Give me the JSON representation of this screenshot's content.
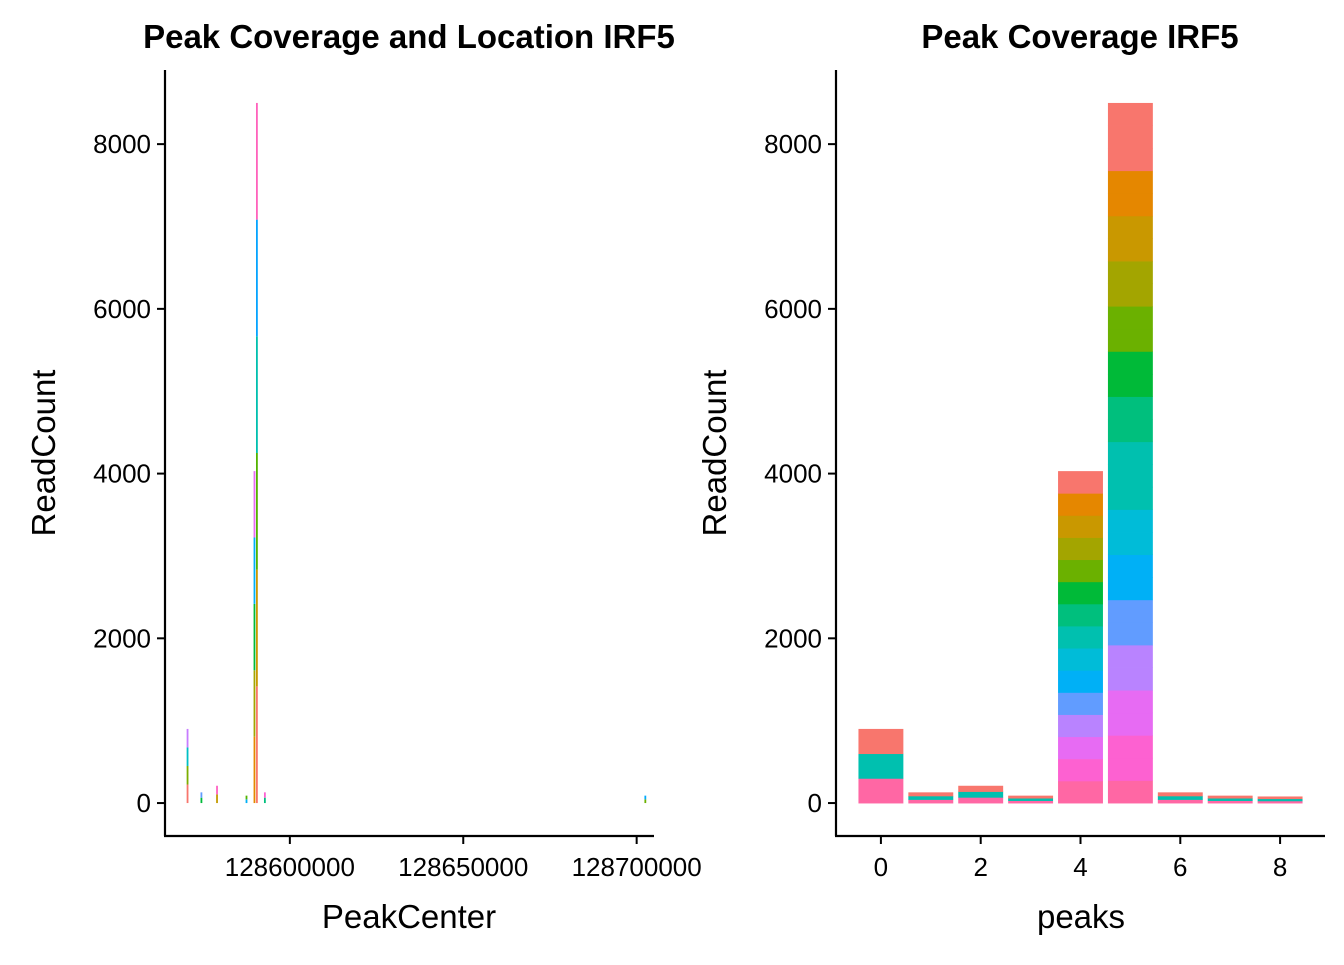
{
  "chart_data": [
    {
      "type": "bar",
      "title": "Peak Coverage and Location IRF5",
      "xlabel": "PeakCenter",
      "ylabel": "ReadCount",
      "xlim": [
        128564000,
        128705000
      ],
      "ylim": [
        -400,
        8900
      ],
      "xticks": [
        128600000,
        128650000,
        128700000
      ],
      "xtick_labels": [
        "128600000",
        "128650000",
        "128700000"
      ],
      "yticks": [
        0,
        2000,
        4000,
        6000,
        8000
      ],
      "ytick_labels": [
        "0",
        "2000",
        "4000",
        "6000",
        "8000"
      ],
      "grid": false,
      "legend": "none",
      "peaks": [
        {
          "x": 128570500,
          "value": 900,
          "colors": [
            "#F8766D",
            "#7CAE00",
            "#00BFC4",
            "#C77CFF"
          ]
        },
        {
          "x": 128574500,
          "value": 130,
          "colors": [
            "#00BA38",
            "#619CFF"
          ]
        },
        {
          "x": 128579000,
          "value": 210,
          "colors": [
            "#C49A00",
            "#FF61C3"
          ]
        },
        {
          "x": 128587500,
          "value": 90,
          "colors": [
            "#00B0F6",
            "#53B400"
          ]
        },
        {
          "x": 128589800,
          "value": 4030,
          "colors": [
            "#E58700",
            "#A3A500",
            "#00BA38",
            "#00B0F6",
            "#E76BF3"
          ]
        },
        {
          "x": 128590500,
          "value": 8500,
          "colors": [
            "#F8766D",
            "#C99800",
            "#53B400",
            "#00C0AF",
            "#06A4FF",
            "#FF62BC"
          ]
        },
        {
          "x": 128592800,
          "value": 130,
          "colors": [
            "#00BF7D",
            "#FD61D1"
          ]
        },
        {
          "x": 128702500,
          "value": 90,
          "colors": [
            "#6BB100",
            "#00A9FF"
          ]
        }
      ]
    },
    {
      "type": "bar",
      "title": "Peak Coverage IRF5",
      "xlabel": "peaks",
      "ylabel": "ReadCount",
      "categories": [
        0,
        1,
        2,
        3,
        4,
        5,
        6,
        7,
        8
      ],
      "values": [
        900,
        130,
        210,
        90,
        4030,
        8500,
        130,
        90,
        80
      ],
      "xlim": [
        -0.9,
        8.9
      ],
      "ylim": [
        -400,
        8900
      ],
      "xticks": [
        0,
        2,
        4,
        6,
        8
      ],
      "xtick_labels": [
        "0",
        "2",
        "4",
        "6",
        "8"
      ],
      "yticks": [
        0,
        2000,
        4000,
        6000,
        8000
      ],
      "ytick_labels": [
        "0",
        "2000",
        "4000",
        "6000",
        "8000"
      ],
      "grid": false,
      "legend": "none",
      "palette": [
        "#F8766D",
        "#E58700",
        "#C99800",
        "#A3A500",
        "#6BB100",
        "#00BA38",
        "#00BF7D",
        "#00C0AF",
        "#00BCD8",
        "#00B0F6",
        "#619CFF",
        "#B983FF",
        "#E76BF3",
        "#FD61D1",
        "#FF67A4"
      ]
    }
  ]
}
